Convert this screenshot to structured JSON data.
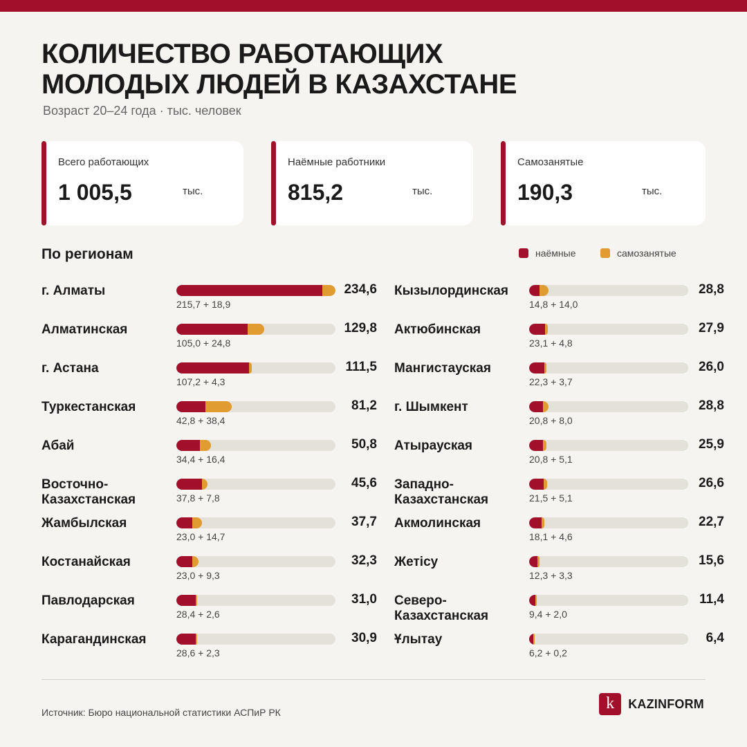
{
  "title_lines": [
    "КОЛИЧЕСТВО РАБОТАЮЩИХ",
    "МОЛОДЫХ ЛЮДЕЙ В КАЗАХСТАНЕ"
  ],
  "subtitle": "Возраст 20–24 года · тыс. человек",
  "cards": [
    {
      "label": "Всего работающих",
      "value": "1 005,5",
      "unit": "тыс."
    },
    {
      "label": "Наёмные работники",
      "value": "815,2",
      "unit": "тыс."
    },
    {
      "label": "Самозанятые",
      "value": "190,3",
      "unit": "тыс."
    }
  ],
  "section_title": "По регионам",
  "legend": {
    "hired": "наёмные",
    "self": "самозанятые"
  },
  "colors": {
    "accent": "#a20f2b",
    "hired": "#a20f2b",
    "self": "#e09c30",
    "track": "#e4e0da",
    "background": "#f6f4f1"
  },
  "chart_data": {
    "type": "bar",
    "stacked": true,
    "orientation": "horizontal",
    "xlim": [
      0,
      234.6
    ],
    "series": [
      {
        "name": "наёмные",
        "values": [
          215.7,
          105.0,
          107.2,
          42.8,
          34.4,
          37.8,
          23.0,
          23.0,
          28.4,
          28.6,
          14.8,
          23.1,
          22.3,
          20.8,
          20.8,
          21.5,
          18.1,
          12.3,
          9.4,
          6.2
        ]
      },
      {
        "name": "самозанятые",
        "values": [
          18.9,
          24.8,
          4.3,
          38.4,
          16.4,
          7.8,
          14.7,
          9.3,
          2.6,
          2.3,
          14.0,
          4.8,
          3.7,
          8.0,
          5.1,
          5.1,
          4.6,
          3.3,
          2.0,
          0.2
        ]
      }
    ],
    "rows": [
      {
        "region": "г. Алматы",
        "total": 234.6,
        "hired": 215.7,
        "self": 18.9,
        "total_label": "234,6",
        "breakdown": "215,7 + 18,9"
      },
      {
        "region": "Алматинская",
        "total": 129.8,
        "hired": 105.0,
        "self": 24.8,
        "total_label": "129,8",
        "breakdown": "105,0 + 24,8"
      },
      {
        "region": "г. Астана",
        "total": 111.5,
        "hired": 107.2,
        "self": 4.3,
        "total_label": "111,5",
        "breakdown": "107,2 + 4,3"
      },
      {
        "region": "Туркестанская",
        "total": 81.2,
        "hired": 42.8,
        "self": 38.4,
        "total_label": "81,2",
        "breakdown": "42,8 + 38,4"
      },
      {
        "region": "Абай",
        "total": 50.8,
        "hired": 34.4,
        "self": 16.4,
        "total_label": "50,8",
        "breakdown": "34,4 + 16,4"
      },
      {
        "region": "Восточно-Казахстанская",
        "total": 45.6,
        "hired": 37.8,
        "self": 7.8,
        "total_label": "45,6",
        "breakdown": "37,8 + 7,8"
      },
      {
        "region": "Жамбылская",
        "total": 37.7,
        "hired": 23.0,
        "self": 14.7,
        "total_label": "37,7",
        "breakdown": "23,0 + 14,7"
      },
      {
        "region": "Костанайская",
        "total": 32.3,
        "hired": 23.0,
        "self": 9.3,
        "total_label": "32,3",
        "breakdown": "23,0 + 9,3"
      },
      {
        "region": "Павлодарская",
        "total": 31.0,
        "hired": 28.4,
        "self": 2.6,
        "total_label": "31,0",
        "breakdown": "28,4 + 2,6"
      },
      {
        "region": "Карагандинская",
        "total": 30.9,
        "hired": 28.6,
        "self": 2.3,
        "total_label": "30,9",
        "breakdown": "28,6 + 2,3"
      },
      {
        "region": "Кызылординская",
        "total": 28.8,
        "hired": 14.8,
        "self": 14.0,
        "total_label": "28,8",
        "breakdown": "14,8 + 14,0"
      },
      {
        "region": "Актюбинская",
        "total": 27.9,
        "hired": 23.1,
        "self": 4.8,
        "total_label": "27,9",
        "breakdown": "23,1 + 4,8"
      },
      {
        "region": "Мангистауская",
        "total": 26.0,
        "hired": 22.3,
        "self": 3.7,
        "total_label": "26,0",
        "breakdown": "22,3 + 3,7"
      },
      {
        "region": "г. Шымкент",
        "total": 28.8,
        "hired": 20.8,
        "self": 8.0,
        "total_label": "28,8",
        "breakdown": "20,8 + 8,0"
      },
      {
        "region": "Атырауская",
        "total": 25.9,
        "hired": 20.8,
        "self": 5.1,
        "total_label": "25,9",
        "breakdown": "20,8 + 5,1"
      },
      {
        "region": "Западно-Казахстанская",
        "total": 26.6,
        "hired": 21.5,
        "self": 5.1,
        "total_label": "26,6",
        "breakdown": "21,5 + 5,1"
      },
      {
        "region": "Акмолинская",
        "total": 22.7,
        "hired": 18.1,
        "self": 4.6,
        "total_label": "22,7",
        "breakdown": "18,1 + 4,6"
      },
      {
        "region": "Жетісу",
        "total": 15.6,
        "hired": 12.3,
        "self": 3.3,
        "total_label": "15,6",
        "breakdown": "12,3 + 3,3"
      },
      {
        "region": "Северо-Казахстанская",
        "total": 11.4,
        "hired": 9.4,
        "self": 2.0,
        "total_label": "11,4",
        "breakdown": "9,4 + 2,0"
      },
      {
        "region": "Ұлытау",
        "total": 6.4,
        "hired": 6.2,
        "self": 0.2,
        "total_label": "6,4",
        "breakdown": "6,2 + 0,2"
      }
    ]
  },
  "source": "Источник: Бюро национальной статистики АСПиР РК",
  "logo": {
    "mark": "k",
    "text": "KAZINFORM"
  }
}
